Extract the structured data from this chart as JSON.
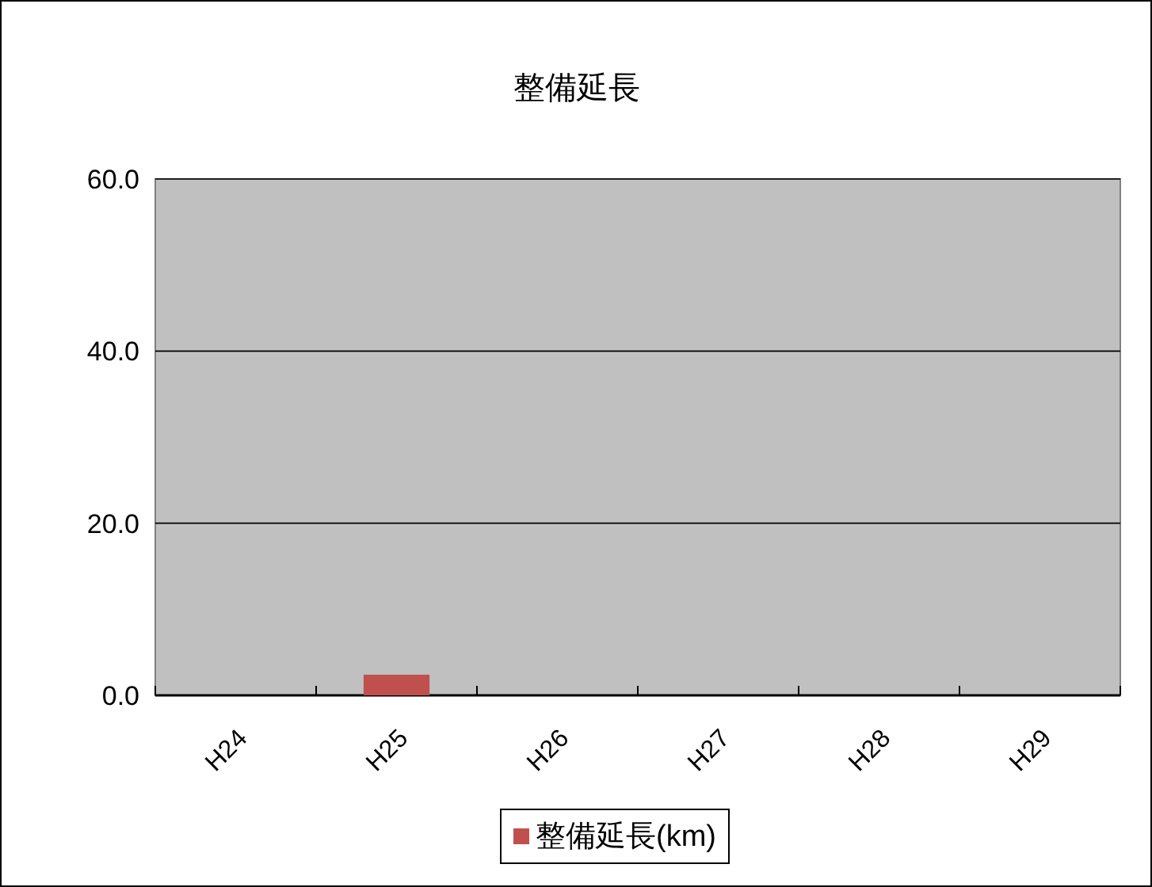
{
  "chart_data": {
    "type": "bar",
    "title": "整備延長",
    "categories": [
      "H24",
      "H25",
      "H26",
      "H27",
      "H28",
      "H29"
    ],
    "series": [
      {
        "name": "整備延長(km)",
        "color": "#c0504d",
        "values": [
          0,
          2.4,
          0,
          0,
          0,
          0
        ]
      }
    ],
    "ylim": [
      0,
      60
    ],
    "yticks": [
      {
        "value": 0,
        "label": "0.0"
      },
      {
        "value": 20,
        "label": "20.0"
      },
      {
        "value": 40,
        "label": "40.0"
      },
      {
        "value": 60,
        "label": "60.0"
      }
    ],
    "grid": "y",
    "legend": "bottom"
  }
}
